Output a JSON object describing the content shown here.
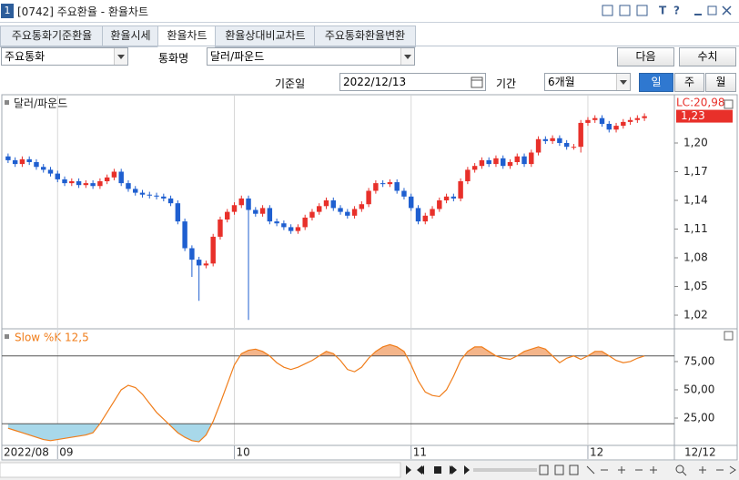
{
  "window": {
    "number": "1",
    "title": "[0742] 주요환율 - 환율차트"
  },
  "tabs": [
    "주요통화기준환율",
    "환율시세",
    "환율차트",
    "환율상대비교차트",
    "주요통화환율변환"
  ],
  "controls": {
    "group": "주요통화",
    "currency_label": "통화명",
    "currency": "달러/파운드",
    "next": "다음",
    "numbers": "수치",
    "date_label": "기준일",
    "date": "2022/12/13",
    "period_label": "기간",
    "period": "6개월",
    "day": "일",
    "week": "주",
    "month": "월"
  },
  "chart_data": [
    {
      "type": "candlestick",
      "title": "달러/파운드",
      "lc_label": "LC:20,98",
      "last_label": "1,23",
      "last_date": "12/12",
      "up_color": "#e8302a",
      "down_color": "#1f5fd0",
      "open": [
        1.186,
        1.182,
        1.178,
        1.183,
        1.18,
        1.175,
        1.172,
        1.168,
        1.162,
        1.158,
        1.16,
        1.156,
        1.158,
        1.155,
        1.16,
        1.164,
        1.17,
        1.158,
        1.152,
        1.148,
        1.146,
        1.145,
        1.144,
        1.142,
        1.137,
        1.118,
        1.09,
        1.078,
        1.072,
        1.074,
        1.102,
        1.12,
        1.128,
        1.135,
        1.142,
        1.13,
        1.126,
        1.132,
        1.118,
        1.116,
        1.112,
        1.108,
        1.112,
        1.122,
        1.128,
        1.134,
        1.14,
        1.132,
        1.128,
        1.124,
        1.131,
        1.136,
        1.15,
        1.158,
        1.157,
        1.159,
        1.15,
        1.144,
        1.132,
        1.118,
        1.124,
        1.131,
        1.14,
        1.144,
        1.142,
        1.16,
        1.172,
        1.176,
        1.182,
        1.178,
        1.184,
        1.176,
        1.18,
        1.186,
        1.178,
        1.19,
        1.204,
        1.202,
        1.205,
        1.2,
        1.196,
        1.196,
        1.221,
        1.224,
        1.226,
        1.22,
        1.214,
        1.218,
        1.222,
        1.224,
        1.226
      ],
      "high": [
        1.189,
        1.185,
        1.186,
        1.186,
        1.183,
        1.178,
        1.175,
        1.171,
        1.165,
        1.163,
        1.163,
        1.161,
        1.161,
        1.163,
        1.167,
        1.173,
        1.173,
        1.161,
        1.155,
        1.151,
        1.149,
        1.148,
        1.147,
        1.145,
        1.14,
        1.121,
        1.093,
        1.081,
        1.077,
        1.105,
        1.123,
        1.131,
        1.138,
        1.145,
        1.145,
        1.133,
        1.135,
        1.135,
        1.121,
        1.119,
        1.115,
        1.115,
        1.125,
        1.131,
        1.137,
        1.143,
        1.143,
        1.135,
        1.131,
        1.134,
        1.139,
        1.153,
        1.161,
        1.161,
        1.162,
        1.162,
        1.153,
        1.147,
        1.135,
        1.127,
        1.134,
        1.143,
        1.147,
        1.147,
        1.163,
        1.175,
        1.179,
        1.185,
        1.185,
        1.187,
        1.187,
        1.183,
        1.189,
        1.189,
        1.193,
        1.207,
        1.207,
        1.208,
        1.208,
        1.203,
        1.199,
        1.224,
        1.227,
        1.229,
        1.229,
        1.223,
        1.221,
        1.225,
        1.227,
        1.229,
        1.231
      ],
      "low": [
        1.179,
        1.175,
        1.175,
        1.177,
        1.172,
        1.169,
        1.165,
        1.159,
        1.155,
        1.155,
        1.153,
        1.153,
        1.152,
        1.152,
        1.157,
        1.161,
        1.155,
        1.149,
        1.145,
        1.143,
        1.142,
        1.141,
        1.139,
        1.134,
        1.115,
        1.087,
        1.06,
        1.035,
        1.069,
        1.071,
        1.099,
        1.117,
        1.125,
        1.132,
        1.015,
        1.123,
        1.123,
        1.115,
        1.113,
        1.109,
        1.105,
        1.105,
        1.109,
        1.119,
        1.125,
        1.131,
        1.129,
        1.125,
        1.121,
        1.121,
        1.128,
        1.133,
        1.147,
        1.154,
        1.154,
        1.147,
        1.141,
        1.129,
        1.115,
        1.115,
        1.121,
        1.128,
        1.137,
        1.139,
        1.139,
        1.157,
        1.169,
        1.173,
        1.175,
        1.175,
        1.173,
        1.173,
        1.177,
        1.175,
        1.175,
        1.187,
        1.199,
        1.199,
        1.197,
        1.193,
        1.193,
        1.19,
        1.218,
        1.221,
        1.217,
        1.211,
        1.211,
        1.215,
        1.219,
        1.221,
        1.223
      ],
      "close": [
        1.182,
        1.178,
        1.183,
        1.18,
        1.175,
        1.172,
        1.168,
        1.162,
        1.158,
        1.16,
        1.156,
        1.158,
        1.155,
        1.16,
        1.164,
        1.17,
        1.158,
        1.152,
        1.148,
        1.146,
        1.145,
        1.144,
        1.142,
        1.137,
        1.118,
        1.09,
        1.078,
        1.072,
        1.074,
        1.102,
        1.12,
        1.128,
        1.135,
        1.142,
        1.13,
        1.126,
        1.132,
        1.118,
        1.116,
        1.112,
        1.108,
        1.112,
        1.122,
        1.128,
        1.134,
        1.14,
        1.132,
        1.128,
        1.124,
        1.131,
        1.136,
        1.15,
        1.158,
        1.157,
        1.159,
        1.15,
        1.144,
        1.132,
        1.118,
        1.124,
        1.131,
        1.14,
        1.144,
        1.142,
        1.16,
        1.172,
        1.176,
        1.182,
        1.178,
        1.184,
        1.176,
        1.18,
        1.186,
        1.178,
        1.19,
        1.204,
        1.202,
        1.205,
        1.2,
        1.196,
        1.196,
        1.221,
        1.224,
        1.226,
        1.22,
        1.214,
        1.218,
        1.222,
        1.224,
        1.226,
        1.228
      ],
      "xlim": [
        -0.5,
        90.5
      ],
      "xticks": [
        {
          "value": -0.5,
          "label": "2022/08"
        },
        {
          "value": 7,
          "label": "09"
        },
        {
          "value": 32,
          "label": "10"
        },
        {
          "value": 57,
          "label": "11"
        },
        {
          "value": 82,
          "label": "12"
        }
      ],
      "ylim": [
        1.0067,
        1.2495
      ],
      "yticks": [
        {
          "value": 1.02,
          "label": "1,02"
        },
        {
          "value": 1.05,
          "label": "1,05"
        },
        {
          "value": 1.08,
          "label": "1,08"
        },
        {
          "value": 1.11,
          "label": "1,11"
        },
        {
          "value": 1.14,
          "label": "1,14"
        },
        {
          "value": 1.17,
          "label": "1,17"
        },
        {
          "value": 1.2,
          "label": "1,20"
        }
      ]
    },
    {
      "type": "line",
      "title": "Slow %K 12,5",
      "color": "#f07d1a",
      "high_fill": "#f4b58a",
      "low_fill": "#a8d8ea",
      "levels": [
        80,
        20
      ],
      "values": [
        16,
        14,
        12,
        10,
        8,
        6,
        5,
        6,
        7,
        8,
        9,
        10,
        12,
        20,
        30,
        40,
        50,
        54,
        52,
        46,
        38,
        30,
        24,
        18,
        12,
        8,
        5,
        4,
        10,
        22,
        38,
        55,
        72,
        82,
        85,
        86,
        84,
        80,
        74,
        70,
        68,
        70,
        73,
        76,
        80,
        84,
        82,
        76,
        68,
        66,
        70,
        78,
        84,
        88,
        90,
        88,
        84,
        72,
        58,
        48,
        45,
        44,
        50,
        62,
        76,
        84,
        88,
        88,
        84,
        80,
        78,
        77,
        80,
        84,
        86,
        88,
        86,
        80,
        74,
        78,
        80,
        77,
        80,
        84,
        84,
        80,
        76,
        74,
        75,
        78,
        80
      ],
      "ylim": [
        0.8,
        103.2
      ],
      "yticks": [
        {
          "value": 25,
          "label": "25,00"
        },
        {
          "value": 50,
          "label": "50,00"
        },
        {
          "value": 75,
          "label": "75,00"
        }
      ]
    }
  ]
}
